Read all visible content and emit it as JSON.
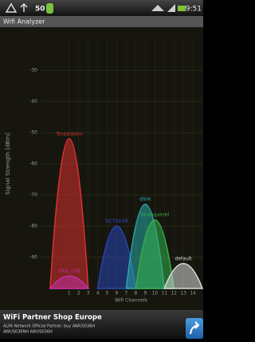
{
  "status_bar": {
    "signal_value": "50",
    "time": "9:51"
  },
  "app_bar": {
    "title": "Wifi Analyzer"
  },
  "chart_data": {
    "type": "area",
    "x_label": "Wifi Channels",
    "y_label": "Signal Strength [dBm]",
    "xlim": [
      -2,
      15
    ],
    "ylim": [
      -100,
      -20
    ],
    "xticks": [
      1,
      2,
      3,
      4,
      5,
      6,
      7,
      8,
      9,
      10,
      11,
      12,
      13,
      14
    ],
    "yticks": [
      -30,
      -40,
      -50,
      -60,
      -70,
      -80,
      -90
    ],
    "grid": true,
    "series": [
      {
        "name": "Terastation",
        "color": "#d8322e",
        "channel": 1,
        "level": -52
      },
      {
        "name": "ENS_228",
        "color": "#c02fa0",
        "channel": 1,
        "level": -96
      },
      {
        "name": "NETGEAR",
        "color": "#2846b4",
        "channel": 6,
        "level": -80
      },
      {
        "name": "dlink",
        "color": "#2aa8a8",
        "channel": 9,
        "level": -73
      },
      {
        "name": "bluesquirrel",
        "color": "#34b04a",
        "channel": 10,
        "level": -78
      },
      {
        "name": "default",
        "color": "#d8d8d8",
        "channel": 13,
        "level": -92
      }
    ]
  },
  "ad": {
    "title": "WiFi Partner Shop Europe",
    "line1": "ALFA Network Official Partner. buy AWUS036H",
    "line2": "AWUS036NH AWUS036H"
  }
}
